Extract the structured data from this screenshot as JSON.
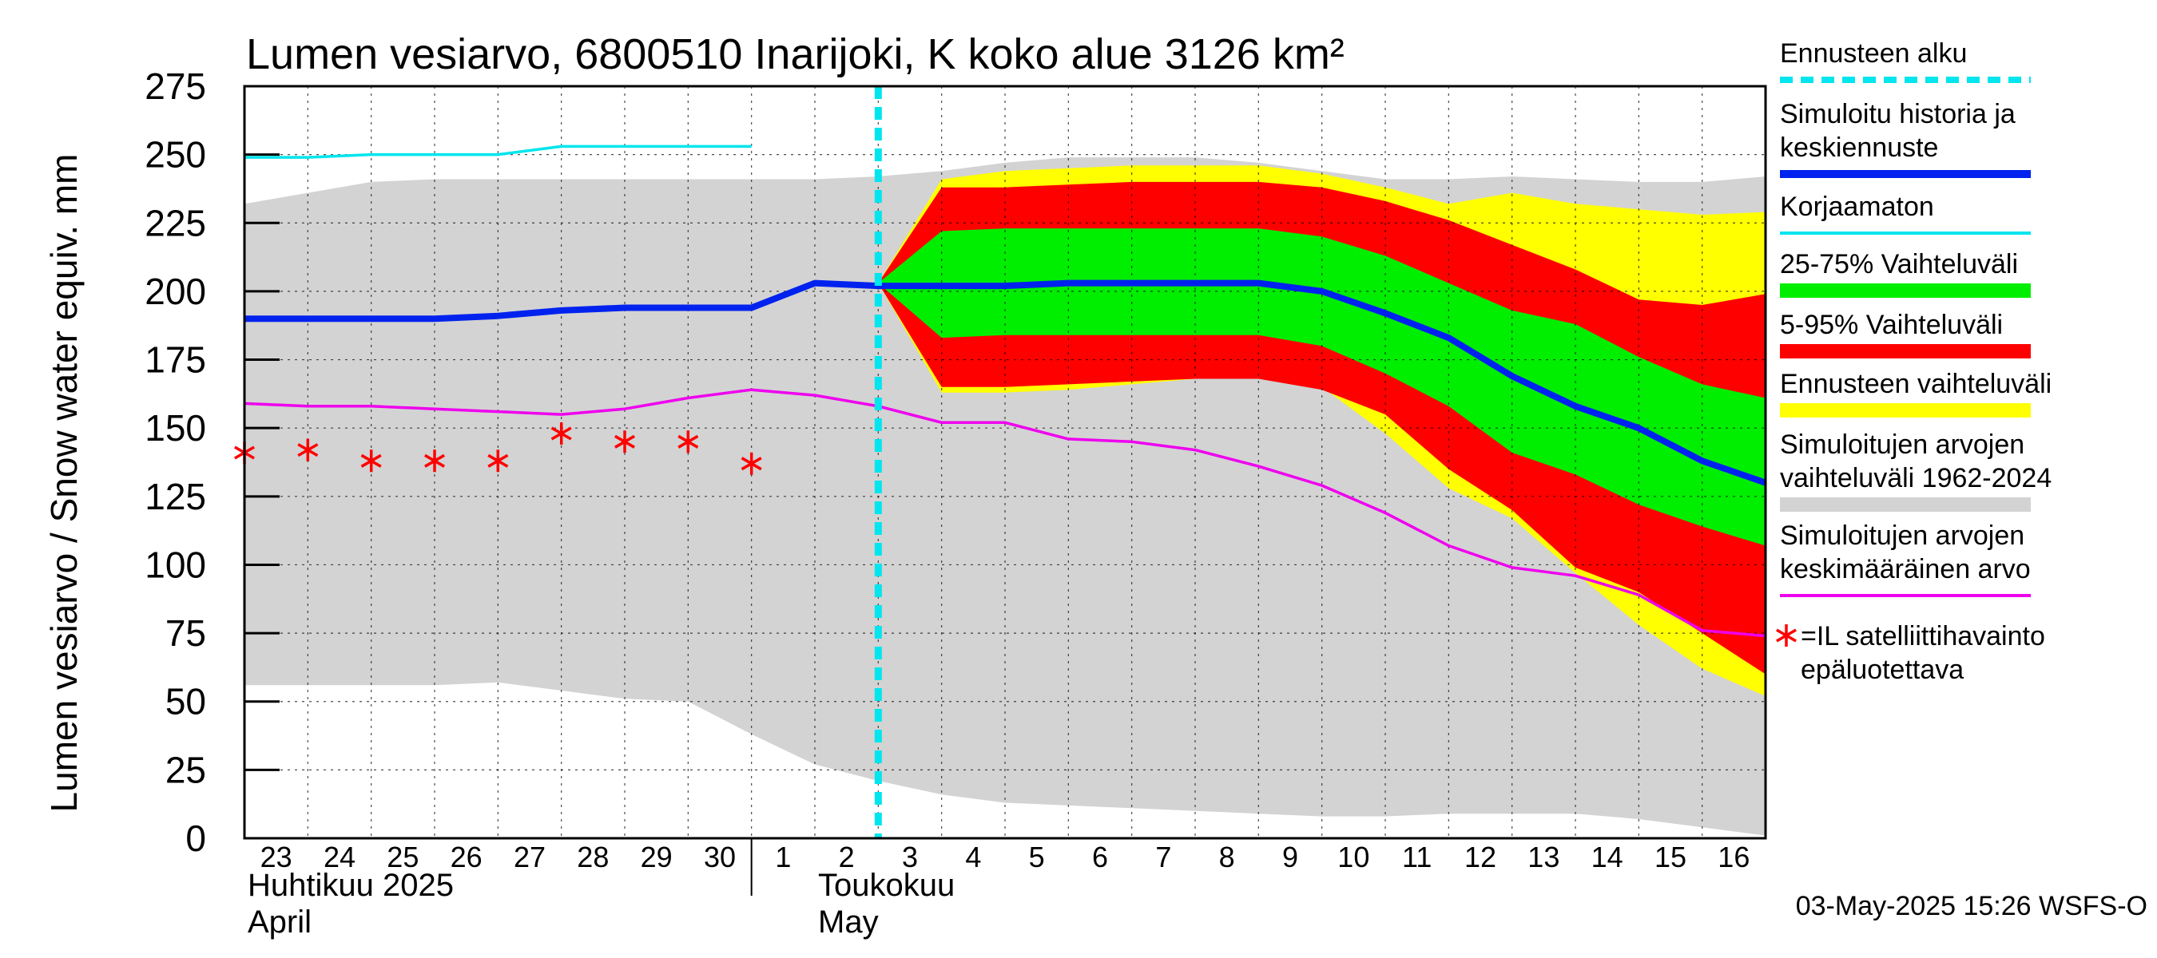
{
  "chart_data": {
    "type": "area",
    "title": "Lumen vesiarvo, 6800510 Inarijoki, K koko alue 3126 km²",
    "ylabel": "Lumen vesiarvo / Snow water equiv.    mm",
    "ylim": [
      0,
      275
    ],
    "yticks": [
      0,
      25,
      50,
      75,
      100,
      125,
      150,
      175,
      200,
      225,
      250,
      275
    ],
    "xlim": [
      0,
      24
    ],
    "x_ticks": [
      "23",
      "24",
      "25",
      "26",
      "27",
      "28",
      "29",
      "30",
      "1",
      "2",
      "3",
      "4",
      "5",
      "6",
      "7",
      "8",
      "9",
      "10",
      "11",
      "12",
      "13",
      "14",
      "15",
      "16"
    ],
    "month_labels": [
      {
        "fi": "Huhtikuu  2025",
        "en": "April",
        "x": 0
      },
      {
        "fi": "Toukokuu",
        "en": "May",
        "x": 9
      }
    ],
    "month_boundary_x": 8,
    "forecast_start_x": 10,
    "grid": true,
    "timestamp": "03-May-2025 15:26 WSFS-O",
    "hist_band": {
      "x": [
        0,
        1,
        2,
        3,
        4,
        5,
        6,
        7,
        8,
        9,
        10,
        11,
        12,
        13,
        14,
        15,
        16,
        17,
        18,
        19,
        20,
        21,
        22,
        23,
        24
      ],
      "upper": [
        232,
        236,
        240,
        241,
        241,
        241,
        241,
        241,
        241,
        241,
        242,
        244,
        247,
        249,
        249,
        249,
        247,
        244,
        241,
        241,
        242,
        241,
        240,
        240,
        242
      ],
      "lower": [
        56,
        56,
        56,
        56,
        57,
        54,
        51,
        50,
        38,
        27,
        21,
        16,
        13,
        12,
        11,
        10,
        9,
        8,
        8,
        9,
        9,
        9,
        7,
        4,
        1
      ]
    },
    "forecast_band": {
      "x": [
        10,
        11,
        12,
        13,
        14,
        15,
        16,
        17,
        18,
        19,
        20,
        21,
        22,
        23,
        24
      ],
      "upper": [
        203,
        241,
        244,
        245,
        246,
        246,
        246,
        243,
        238,
        232,
        236,
        232,
        230,
        228,
        229
      ],
      "lower": [
        203,
        163,
        163,
        164,
        166,
        168,
        168,
        165,
        148,
        128,
        117,
        97,
        78,
        62,
        52
      ]
    },
    "p5_95": {
      "x": [
        10,
        11,
        12,
        13,
        14,
        15,
        16,
        17,
        18,
        19,
        20,
        21,
        22,
        23,
        24
      ],
      "upper": [
        203,
        238,
        238,
        239,
        240,
        240,
        240,
        238,
        233,
        226,
        217,
        208,
        197,
        195,
        199
      ],
      "lower": [
        203,
        165,
        165,
        166,
        167,
        168,
        168,
        164,
        155,
        135,
        120,
        99,
        90,
        75,
        60
      ]
    },
    "p25_75": {
      "x": [
        10,
        11,
        12,
        13,
        14,
        15,
        16,
        17,
        18,
        19,
        20,
        21,
        22,
        23,
        24
      ],
      "upper": [
        203,
        222,
        223,
        223,
        223,
        223,
        223,
        220,
        213,
        203,
        193,
        188,
        176,
        166,
        161
      ],
      "lower": [
        203,
        183,
        184,
        184,
        184,
        184,
        184,
        180,
        170,
        158,
        141,
        133,
        122,
        114,
        107
      ]
    },
    "series": [
      {
        "name": "Simuloitu historia ja keskiennuste",
        "color": "#0022ee",
        "x": [
          0,
          1,
          2,
          3,
          4,
          5,
          6,
          7,
          8,
          9,
          10,
          11,
          12,
          13,
          14,
          15,
          16,
          17,
          18,
          19,
          20,
          21,
          22,
          23,
          24
        ],
        "values": [
          190,
          190,
          190,
          190,
          191,
          193,
          194,
          194,
          194,
          203,
          202,
          202,
          202,
          203,
          203,
          203,
          203,
          200,
          192,
          183,
          169,
          158,
          150,
          138,
          130
        ]
      },
      {
        "name": "Korjaamaton",
        "color": "#00e5ee",
        "x": [
          0,
          1,
          2,
          3,
          4,
          5,
          6,
          7,
          8
        ],
        "values": [
          249,
          249,
          250,
          250,
          250,
          253,
          253,
          253,
          253
        ]
      },
      {
        "name": "Simuloitujen arvojen keskimääräinen arvo",
        "color": "#ee00ee",
        "x": [
          0,
          1,
          2,
          3,
          4,
          5,
          6,
          7,
          8,
          9,
          10,
          11,
          12,
          13,
          14,
          15,
          16,
          17,
          18,
          19,
          20,
          21,
          22,
          23,
          24
        ],
        "values": [
          159,
          158,
          158,
          157,
          156,
          155,
          157,
          161,
          164,
          162,
          158,
          152,
          152,
          146,
          145,
          142,
          136,
          129,
          119,
          107,
          99,
          96,
          89,
          76,
          74
        ]
      }
    ],
    "observations": {
      "name": "=IL satelliittihavainto epäluotettava",
      "color": "#ff0000",
      "x": [
        0,
        1,
        2,
        3,
        4,
        5,
        6,
        7,
        8
      ],
      "values": [
        141,
        142,
        138,
        138,
        138,
        148,
        145,
        145,
        137
      ]
    },
    "legend": [
      {
        "label": "Ennusteen alku",
        "kind": "dashed",
        "color": "#00e5ee"
      },
      {
        "label": "Simuloitu historia ja keskiennuste",
        "kind": "line",
        "color": "#0022ee"
      },
      {
        "label": "Korjaamaton",
        "kind": "thin",
        "color": "#00e5ee"
      },
      {
        "label": "25-75% Vaihteluväli",
        "kind": "bar",
        "color": "#00ee00"
      },
      {
        "label": "5-95% Vaihteluväli",
        "kind": "bar",
        "color": "#ff0000"
      },
      {
        "label": "Ennusteen vaihteluväli",
        "kind": "bar",
        "color": "#ffff00"
      },
      {
        "label": "Simuloitujen arvojen vaihteluväli 1962-2024",
        "kind": "bar",
        "color": "#d3d3d3"
      },
      {
        "label": "Simuloitujen arvojen keskimääräinen arvo",
        "kind": "thin",
        "color": "#ee00ee"
      },
      {
        "label": "=IL satelliittihavainto epäluotettava",
        "kind": "star",
        "color": "#ff0000"
      }
    ]
  }
}
